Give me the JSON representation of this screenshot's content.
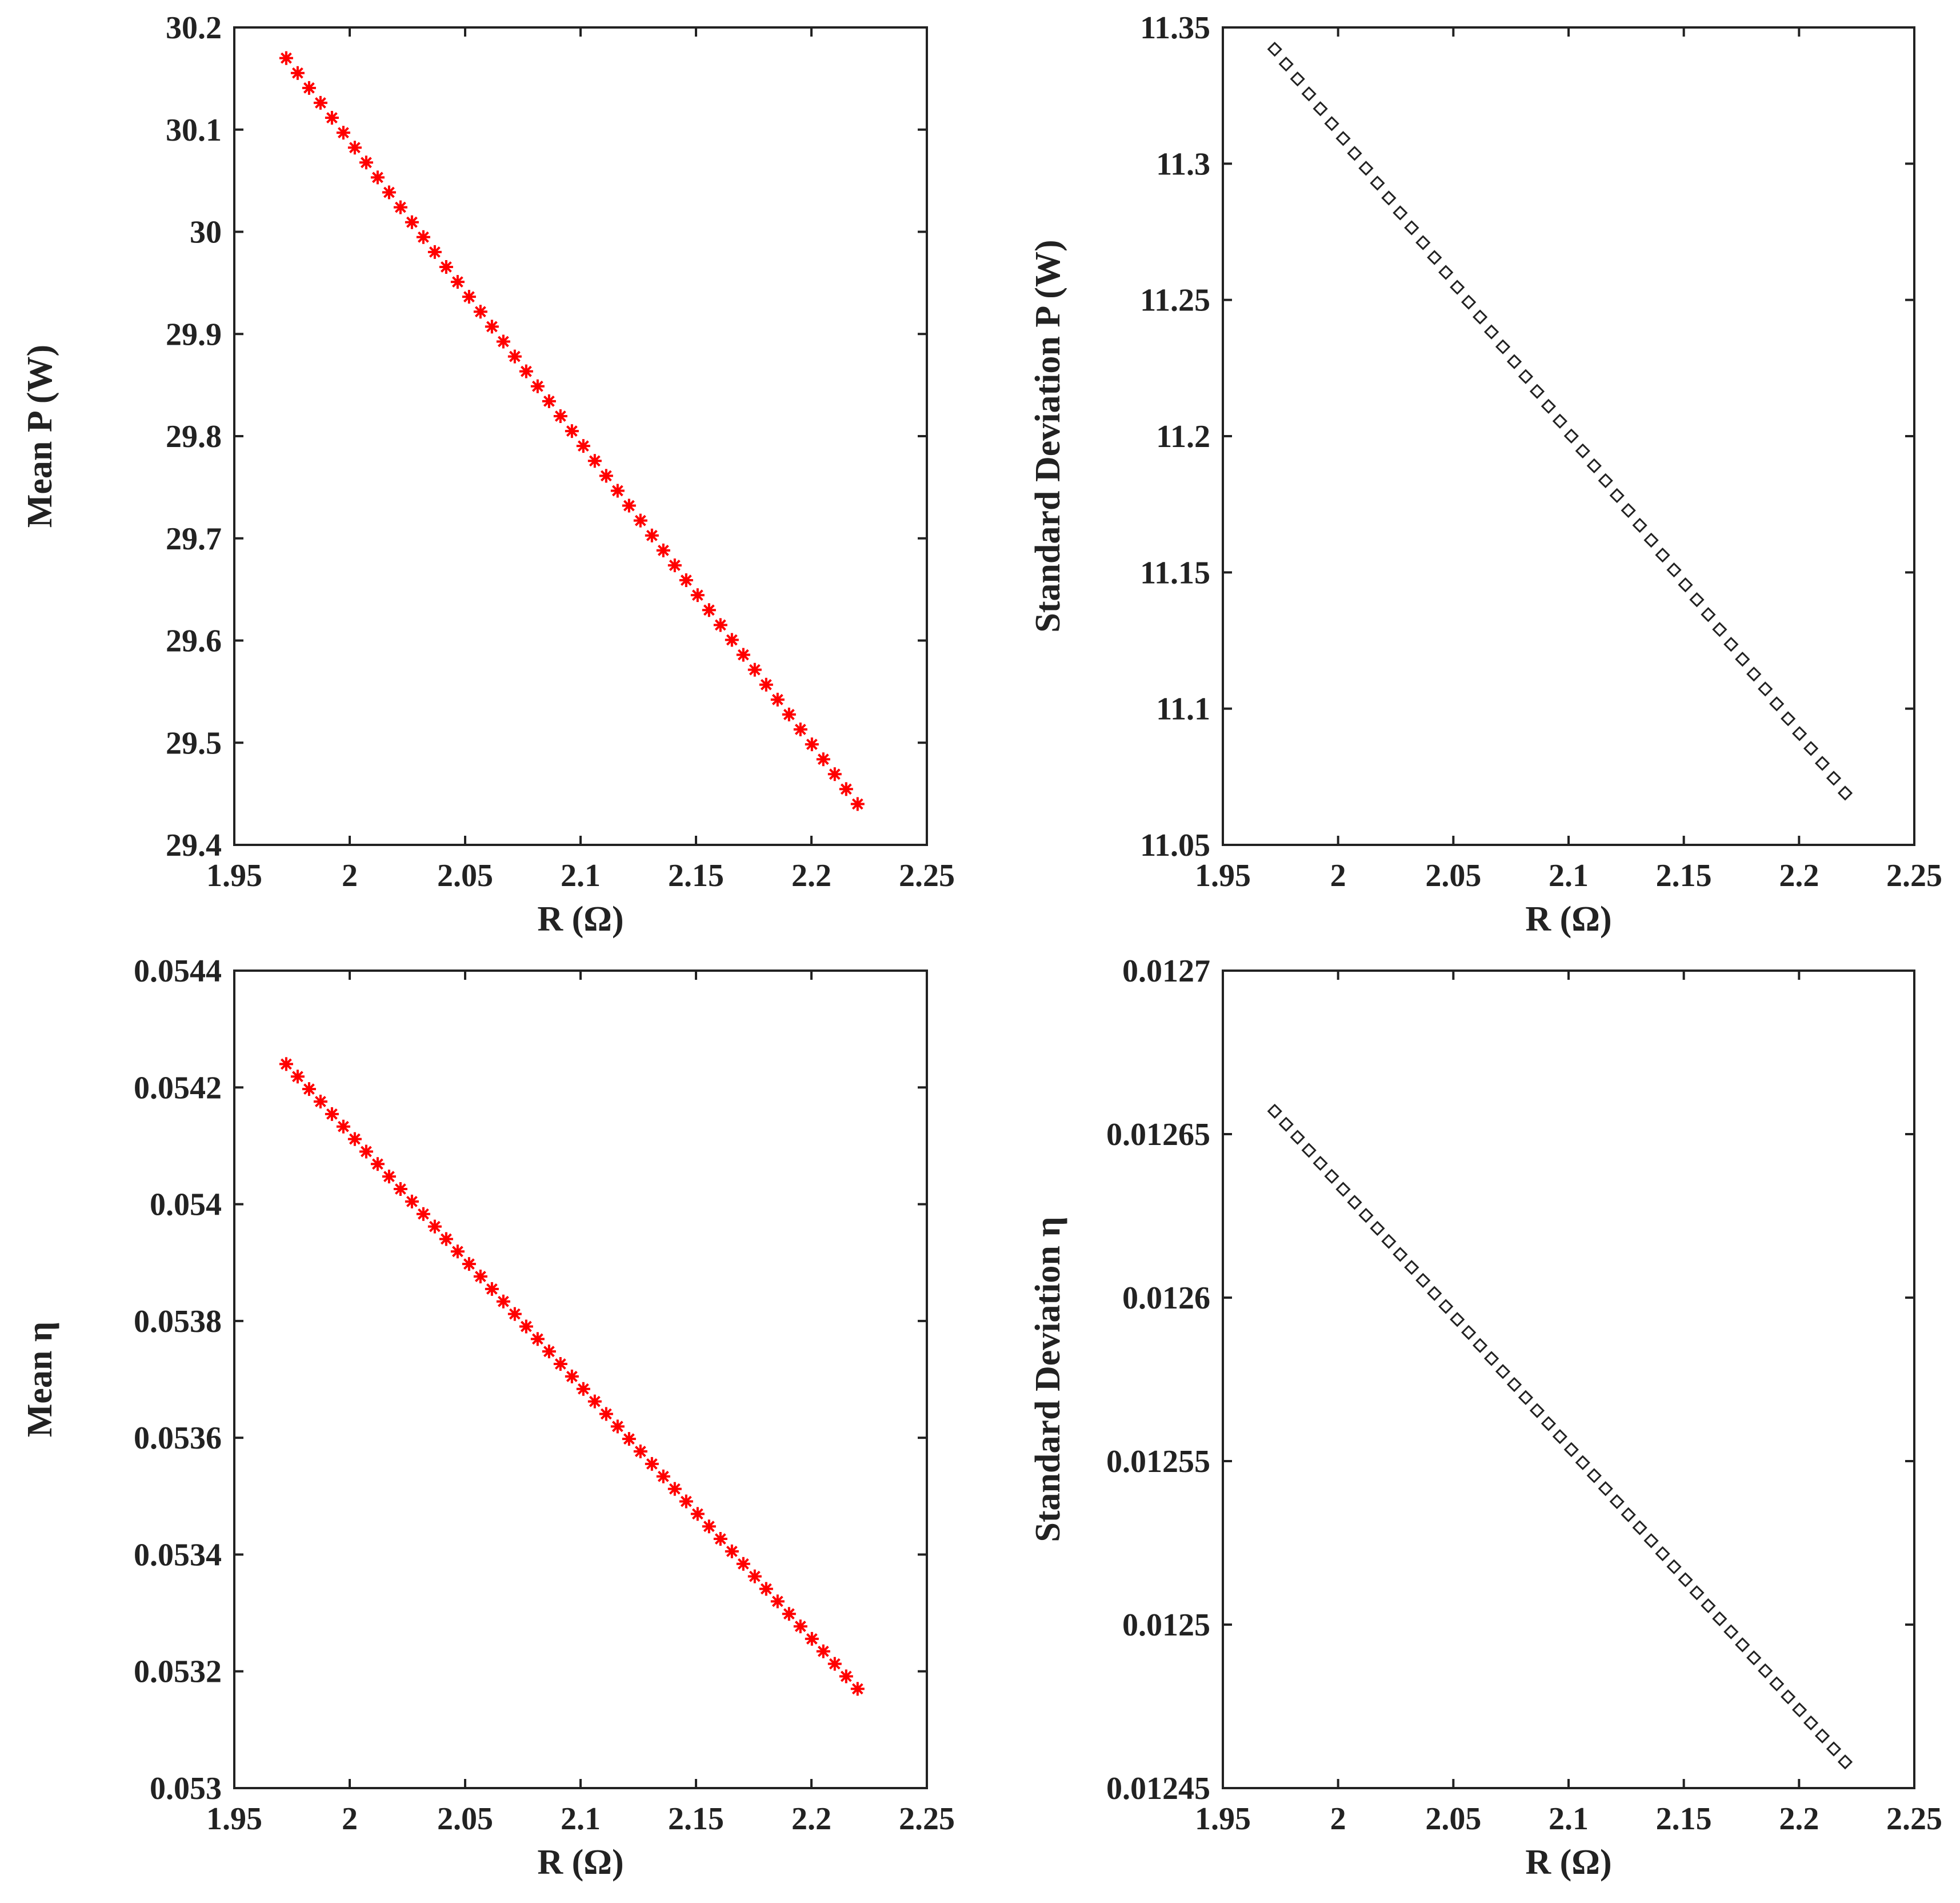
{
  "chart_data": [
    {
      "type": "scatter",
      "id": "mean-power",
      "title": "",
      "xlabel": "R (Ω)",
      "ylabel": "Mean P (W)",
      "xlim": [
        1.95,
        2.25
      ],
      "ylim": [
        29.4,
        30.2
      ],
      "xticks": [
        1.95,
        2,
        2.05,
        2.1,
        2.15,
        2.2,
        2.25
      ],
      "xtick_labels": [
        "1.95",
        "2",
        "2.05",
        "2.1",
        "2.15",
        "2.2",
        "2.25"
      ],
      "yticks": [
        29.4,
        29.5,
        29.6,
        29.7,
        29.8,
        29.9,
        30,
        30.1,
        30.2
      ],
      "ytick_labels": [
        "29.4",
        "29.5",
        "29.6",
        "29.7",
        "29.8",
        "29.9",
        "30",
        "30.1",
        "30.2"
      ],
      "grid": false,
      "series": [
        {
          "marker": "asterisk",
          "color": "#ff0000",
          "n_points": 51,
          "x_start": 1.9725,
          "x_end": 2.22,
          "y_start": 30.17,
          "y_end": 29.44
        }
      ]
    },
    {
      "type": "scatter",
      "id": "std-power",
      "title": "",
      "xlabel": "R (Ω)",
      "ylabel": "Standard Deviation P (W)",
      "xlim": [
        1.95,
        2.25
      ],
      "ylim": [
        11.05,
        11.35
      ],
      "xticks": [
        1.95,
        2,
        2.05,
        2.1,
        2.15,
        2.2,
        2.25
      ],
      "xtick_labels": [
        "1.95",
        "2",
        "2.05",
        "2.1",
        "2.15",
        "2.2",
        "2.25"
      ],
      "yticks": [
        11.05,
        11.1,
        11.15,
        11.2,
        11.25,
        11.3,
        11.35
      ],
      "ytick_labels": [
        "11.05",
        "11.1",
        "11.15",
        "11.2",
        "11.25",
        "11.3",
        "11.35"
      ],
      "grid": false,
      "series": [
        {
          "marker": "diamond",
          "color": "#222222",
          "n_points": 51,
          "x_start": 1.9725,
          "x_end": 2.22,
          "y_start": 11.342,
          "y_end": 11.069
        }
      ]
    },
    {
      "type": "scatter",
      "id": "mean-efficiency",
      "title": "",
      "xlabel": "R (Ω)",
      "ylabel": "Mean η",
      "xlim": [
        1.95,
        2.25
      ],
      "ylim": [
        0.053,
        0.0544
      ],
      "xticks": [
        1.95,
        2,
        2.05,
        2.1,
        2.15,
        2.2,
        2.25
      ],
      "xtick_labels": [
        "1.95",
        "2",
        "2.05",
        "2.1",
        "2.15",
        "2.2",
        "2.25"
      ],
      "yticks": [
        0.053,
        0.0532,
        0.0534,
        0.0536,
        0.0538,
        0.054,
        0.0542,
        0.0544
      ],
      "ytick_labels": [
        "0.053",
        "0.0532",
        "0.0534",
        "0.0536",
        "0.0538",
        "0.054",
        "0.0542",
        "0.0544"
      ],
      "grid": false,
      "series": [
        {
          "marker": "asterisk",
          "color": "#ff0000",
          "n_points": 51,
          "x_start": 1.9725,
          "x_end": 2.22,
          "y_start": 0.05424,
          "y_end": 0.05317
        }
      ]
    },
    {
      "type": "scatter",
      "id": "std-efficiency",
      "title": "",
      "xlabel": "R (Ω)",
      "ylabel": "Standard Deviation η",
      "xlim": [
        1.95,
        2.25
      ],
      "ylim": [
        0.01245,
        0.0127
      ],
      "xticks": [
        1.95,
        2,
        2.05,
        2.1,
        2.15,
        2.2,
        2.25
      ],
      "xtick_labels": [
        "1.95",
        "2",
        "2.05",
        "2.1",
        "2.15",
        "2.2",
        "2.25"
      ],
      "yticks": [
        0.01245,
        0.0125,
        0.01255,
        0.0126,
        0.01265,
        0.0127
      ],
      "ytick_labels": [
        "0.01245",
        "0.0125",
        "0.01255",
        "0.0126",
        "0.01265",
        "0.0127"
      ],
      "grid": false,
      "series": [
        {
          "marker": "diamond",
          "color": "#222222",
          "n_points": 51,
          "x_start": 1.9725,
          "x_end": 2.22,
          "y_start": 0.012657,
          "y_end": 0.012458
        }
      ]
    }
  ]
}
